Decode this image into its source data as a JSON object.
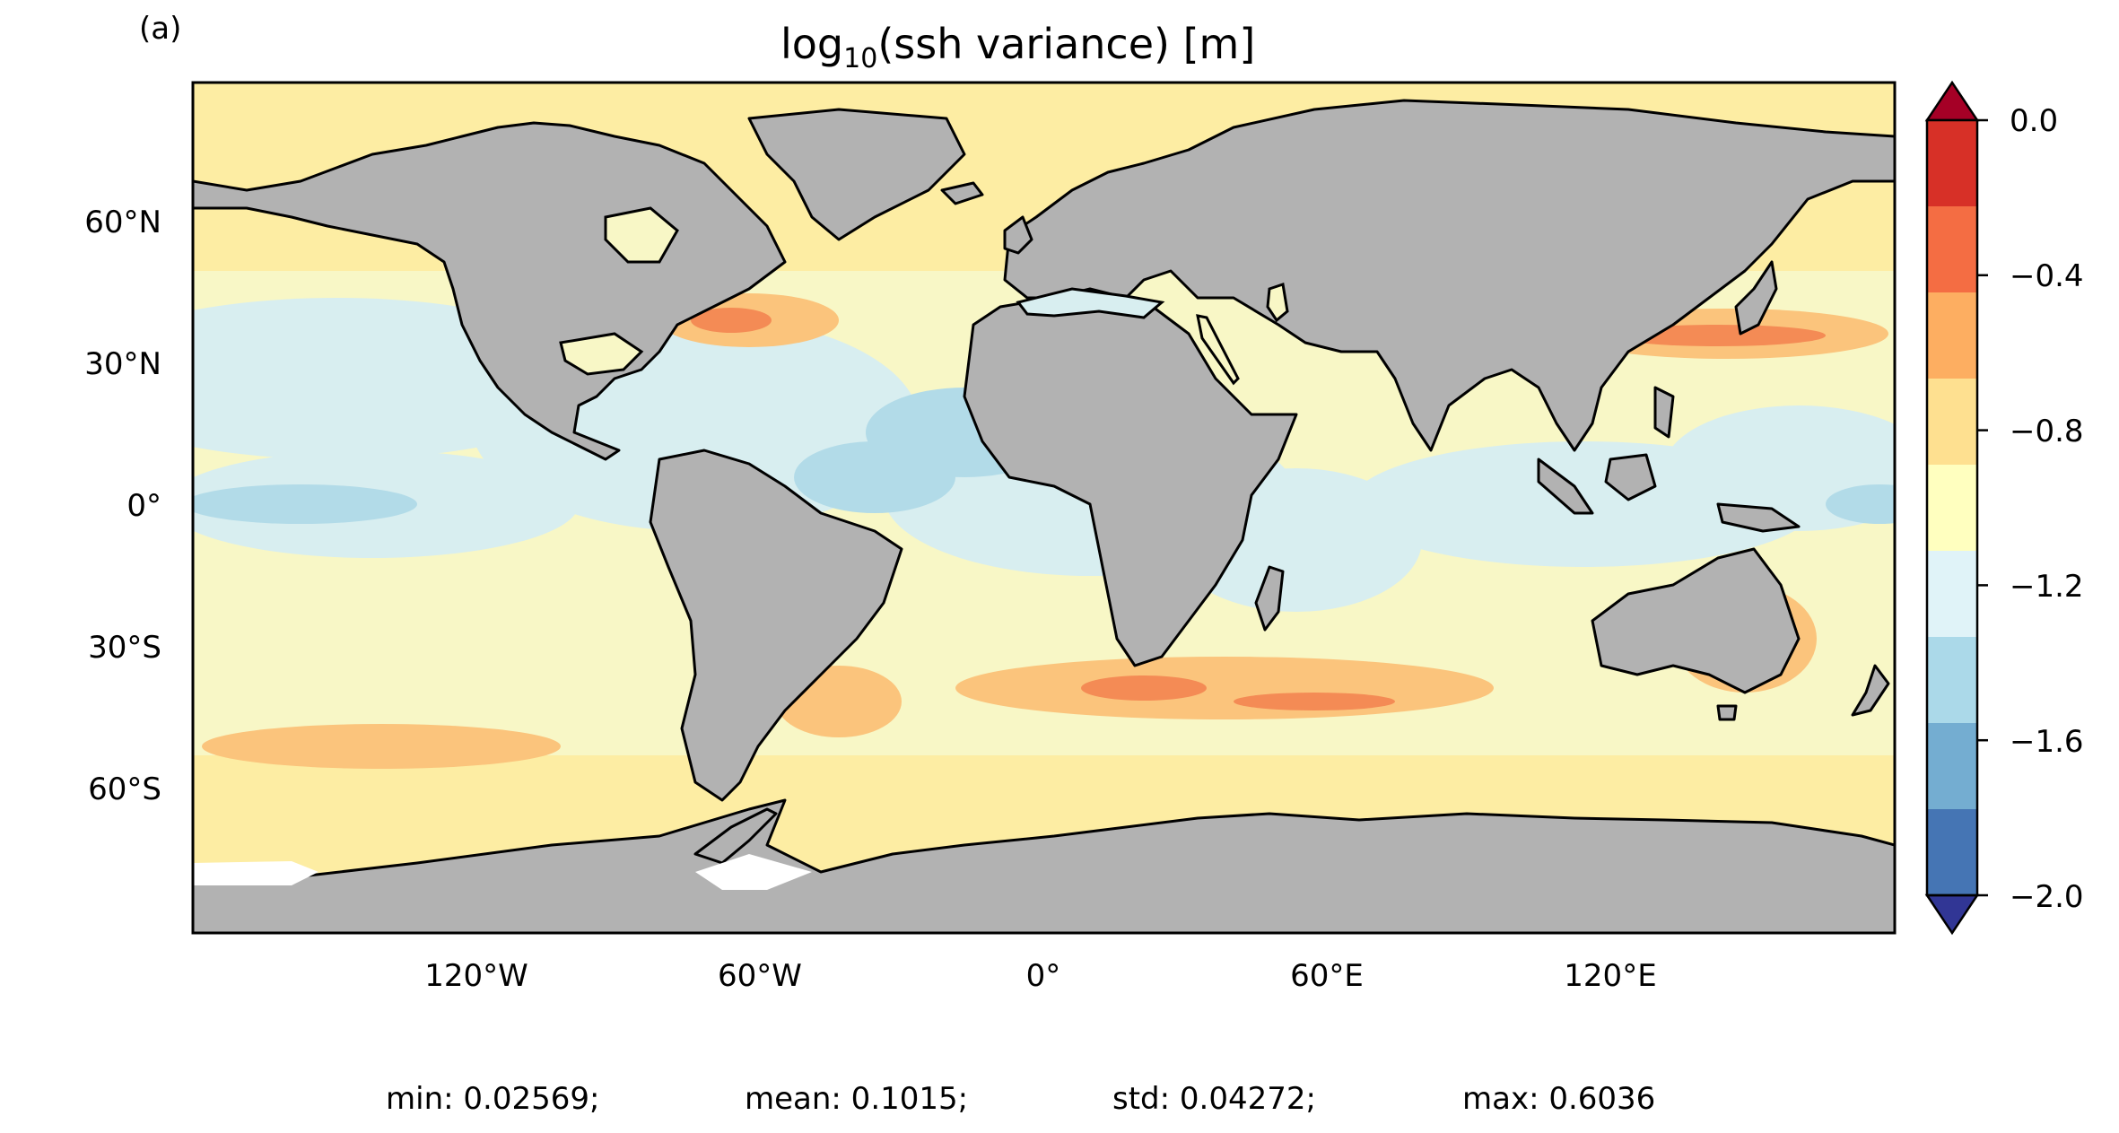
{
  "panel_label": "(a)",
  "title": {
    "prefix": "log",
    "subscript": "10",
    "suffix": "(ssh variance) [m]"
  },
  "axes": {
    "y_ticks": [
      "60°N",
      "30°N",
      "0°",
      "30°S",
      "60°S"
    ],
    "x_ticks": [
      "120°W",
      "60°W",
      "0°",
      "60°E",
      "120°E"
    ]
  },
  "colorbar": {
    "tick_labels": [
      "0.0",
      "−0.4",
      "−0.8",
      "−1.2",
      "−1.6",
      "−2.0"
    ],
    "colors": [
      "#a50026",
      "#d73027",
      "#f46d43",
      "#fdae61",
      "#fee090",
      "#ffffbf",
      "#e0f3f8",
      "#abd9e9",
      "#74add1",
      "#4575b4",
      "#313695"
    ]
  },
  "stats": {
    "min": "min: 0.02569;",
    "mean": "mean: 0.1015;",
    "std": "std: 0.04272;",
    "max": "max: 0.6036"
  },
  "chart_data": {
    "type": "heatmap",
    "projection": "equirectangular",
    "variable": "log10(ssh variance) [m]",
    "lon_range": [
      -180,
      180
    ],
    "lat_range": [
      -90,
      90
    ],
    "color_range": [
      -2.0,
      0.0
    ],
    "color_levels": [
      -2.0,
      -1.8,
      -1.6,
      -1.4,
      -1.2,
      -1.0,
      -0.8,
      -0.6,
      -0.4,
      -0.2,
      0.0
    ],
    "colorbar_extend": "both",
    "land_color": "#b2b2b2",
    "coastlines": true
  }
}
